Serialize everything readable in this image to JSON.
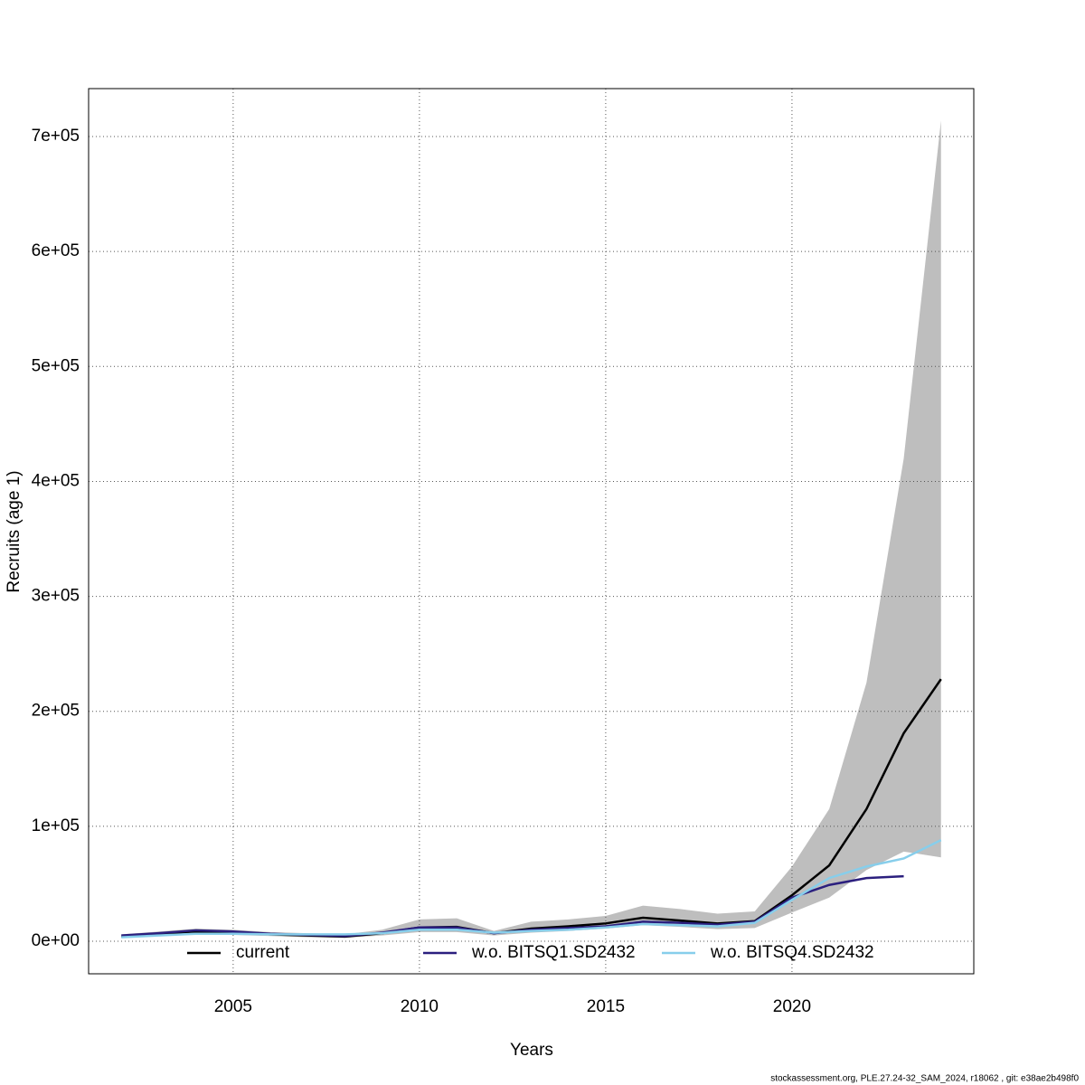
{
  "chart_data": {
    "type": "line",
    "x": [
      2002,
      2003,
      2004,
      2005,
      2006,
      2007,
      2008,
      2009,
      2010,
      2011,
      2012,
      2013,
      2014,
      2015,
      2016,
      2017,
      2018,
      2019,
      2020,
      2021,
      2022,
      2023,
      2024
    ],
    "series": [
      {
        "name": "current",
        "color": "#000000",
        "values": [
          4000,
          6500,
          8500,
          7500,
          6000,
          5000,
          4000,
          7000,
          12000,
          12500,
          7000,
          11000,
          13000,
          15500,
          20500,
          18000,
          15500,
          17500,
          40000,
          66000,
          115000,
          181000,
          228000
        ]
      },
      {
        "name": "w.o. BITSQ1.SD2432",
        "color": "#2b1f7e",
        "values": [
          5000,
          7000,
          9500,
          8500,
          6500,
          5500,
          4500,
          7500,
          12000,
          12000,
          7000,
          10000,
          11500,
          13000,
          17000,
          16000,
          14500,
          17000,
          38000,
          49000,
          55000,
          56500,
          null
        ]
      },
      {
        "name": "w.o. BITSQ4.SD2432",
        "color": "#87ceeb",
        "values": [
          3500,
          5000,
          6500,
          6500,
          6000,
          6000,
          6000,
          7000,
          10000,
          10000,
          7500,
          9000,
          10000,
          12000,
          15000,
          14000,
          13000,
          16000,
          36000,
          55000,
          65000,
          72000,
          88000
        ]
      }
    ],
    "band": {
      "color": "#bebebe",
      "upper": [
        6000,
        8500,
        11000,
        10000,
        8000,
        7000,
        6000,
        10000,
        19000,
        20000,
        9000,
        17000,
        19000,
        22000,
        31000,
        28000,
        24000,
        26000,
        65000,
        115000,
        225000,
        420000,
        714000
      ],
      "lower": [
        3000,
        5000,
        6500,
        5500,
        4500,
        3500,
        3000,
        5000,
        8000,
        8000,
        5000,
        7500,
        9000,
        11000,
        14000,
        12500,
        10500,
        11500,
        25000,
        38000,
        62000,
        78000,
        73000
      ]
    },
    "x_label": "Years",
    "y_label": "Recruits (age 1)",
    "xlim": [
      2001.12,
      2024.88
    ],
    "ylim": [
      -28300,
      741700
    ],
    "xticks": [
      2005,
      2010,
      2015,
      2020
    ],
    "yticks": [
      {
        "value": 0,
        "label": "0e+00"
      },
      {
        "value": 100000,
        "label": "1e+05"
      },
      {
        "value": 200000,
        "label": "2e+05"
      },
      {
        "value": 300000,
        "label": "3e+05"
      },
      {
        "value": 400000,
        "label": "4e+05"
      },
      {
        "value": 500000,
        "label": "5e+05"
      },
      {
        "value": 600000,
        "label": "6e+05"
      },
      {
        "value": 700000,
        "label": "7e+05"
      }
    ],
    "grid": true,
    "legend": "bottom",
    "footer": "stockassessment.org, PLE.27.24-32_SAM_2024, r18062 , git: e38ae2b498f0"
  }
}
